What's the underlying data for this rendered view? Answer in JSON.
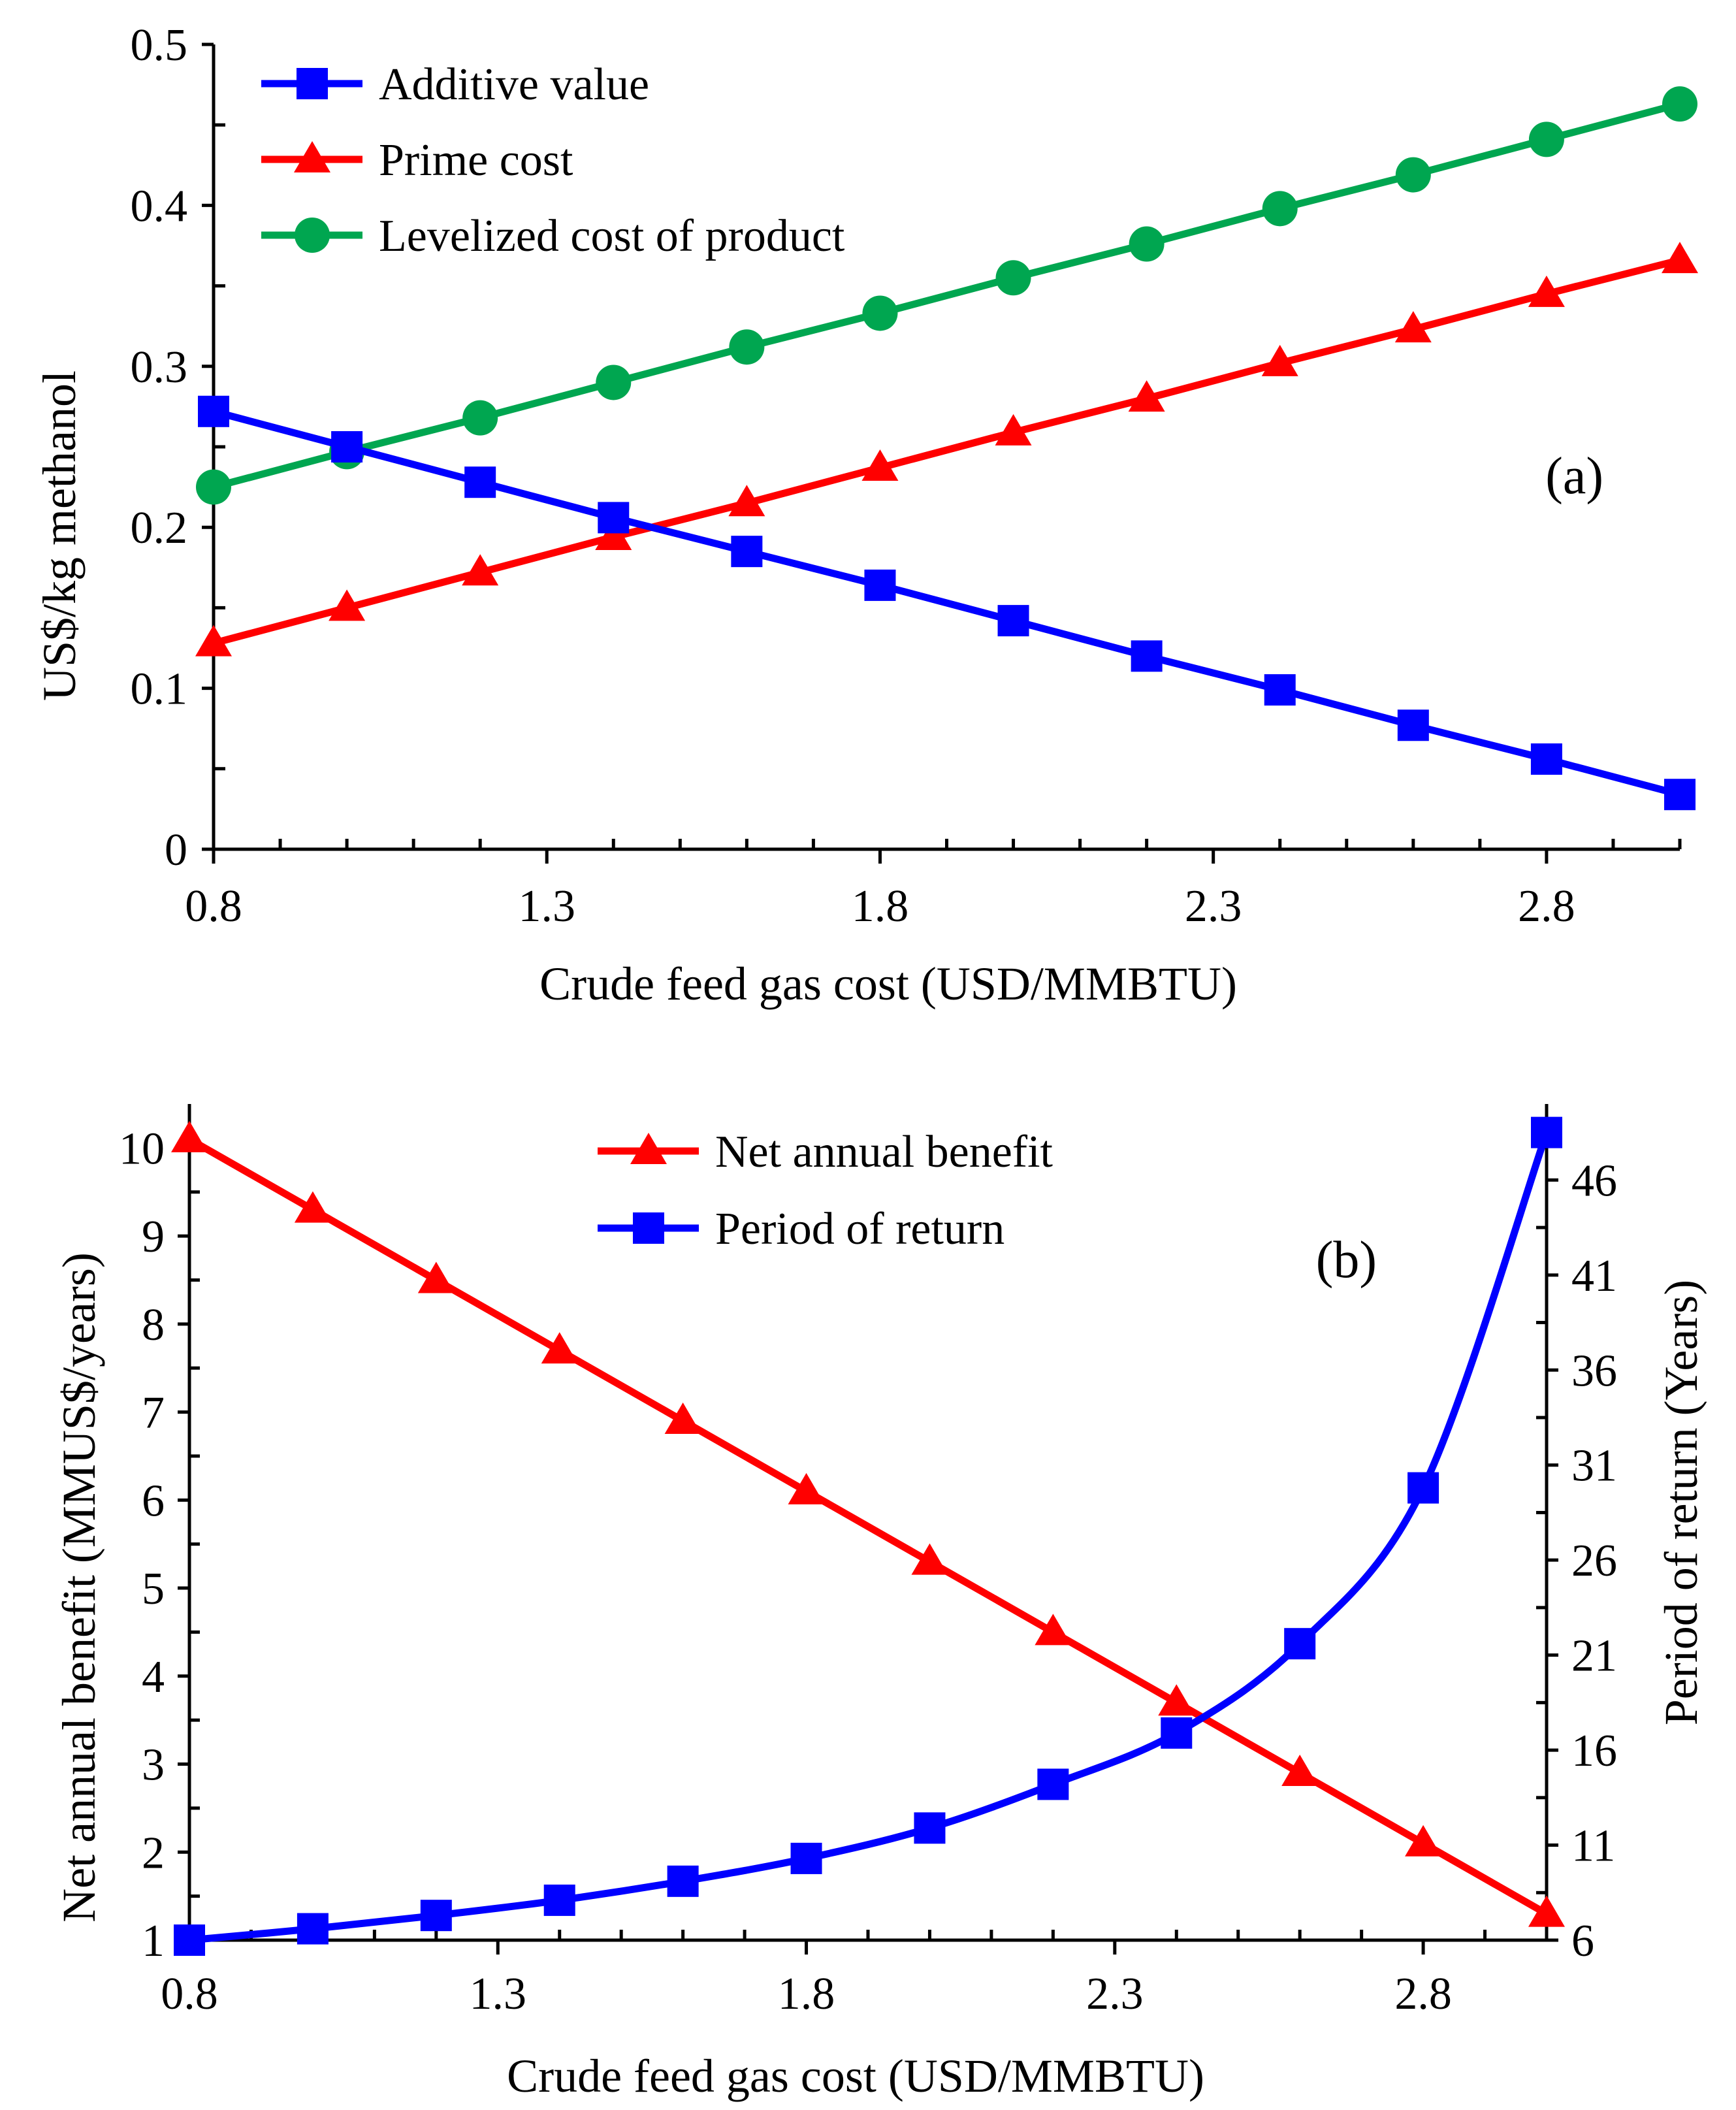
{
  "chart_data": [
    {
      "type": "line",
      "panel_label": "(a)",
      "xlabel": "Crude feed gas cost (USD/MMBTU)",
      "ylabel": "US$/kg methanol",
      "xlim": [
        0.8,
        3.0
      ],
      "ylim": [
        0,
        0.5
      ],
      "xticks": [
        "0.8",
        "1.3",
        "1.8",
        "2.3",
        "2.8"
      ],
      "yticks": [
        "0",
        "0.1",
        "0.2",
        "0.3",
        "0.4",
        "0.5"
      ],
      "x": [
        0.8,
        1.0,
        1.2,
        1.4,
        1.6,
        1.8,
        2.0,
        2.2,
        2.4,
        2.6,
        2.8,
        3.0
      ],
      "legend_position": "top-left",
      "series": [
        {
          "name": "Additive value",
          "color": "#0000ff",
          "marker": "square",
          "values": [
            0.272,
            0.25,
            0.228,
            0.206,
            0.185,
            0.164,
            0.142,
            0.12,
            0.099,
            0.077,
            0.056,
            0.034
          ]
        },
        {
          "name": "Prime cost",
          "color": "#ff0000",
          "marker": "triangle",
          "values": [
            0.128,
            0.15,
            0.172,
            0.194,
            0.215,
            0.237,
            0.259,
            0.28,
            0.302,
            0.323,
            0.345,
            0.366
          ]
        },
        {
          "name": "Levelized cost of product",
          "color": "#00a650",
          "marker": "circle",
          "values": [
            0.225,
            0.247,
            0.268,
            0.29,
            0.312,
            0.333,
            0.355,
            0.376,
            0.398,
            0.419,
            0.441,
            0.463
          ]
        }
      ]
    },
    {
      "type": "line",
      "panel_label": "(b)",
      "xlabel": "Crude feed gas cost (USD/MMBTU)",
      "ylabel_left": "Net annual benefit (MMUS$/years)",
      "ylabel_right": "Period of return (Years)",
      "xlim": [
        0.8,
        3.0
      ],
      "ylim_left": [
        1,
        10.5
      ],
      "ylim_right": [
        6,
        50
      ],
      "xticks": [
        "0.8",
        "1.3",
        "1.8",
        "2.3",
        "2.8"
      ],
      "yticks_left": [
        "1",
        "2",
        "3",
        "4",
        "5",
        "6",
        "7",
        "8",
        "9",
        "10"
      ],
      "yticks_right": [
        "6",
        "11",
        "16",
        "21",
        "26",
        "31",
        "36",
        "41",
        "46"
      ],
      "x": [
        0.8,
        1.0,
        1.2,
        1.4,
        1.6,
        1.8,
        2.0,
        2.2,
        2.4,
        2.6,
        2.8,
        3.0
      ],
      "legend_position": "top-center",
      "series": [
        {
          "name": "Net annual benefit",
          "axis": "left",
          "color": "#ff0000",
          "marker": "triangle",
          "values": [
            10.1,
            9.3,
            8.5,
            7.7,
            6.9,
            6.1,
            5.3,
            4.5,
            3.7,
            2.9,
            2.1,
            1.3
          ]
        },
        {
          "name": "Period of return",
          "axis": "right",
          "color": "#0000ff",
          "marker": "square",
          "smooth": true,
          "values": [
            6.0,
            6.6,
            7.3,
            8.1,
            9.1,
            10.3,
            11.9,
            14.2,
            16.9,
            21.6,
            29.8,
            48.5
          ]
        }
      ]
    }
  ]
}
